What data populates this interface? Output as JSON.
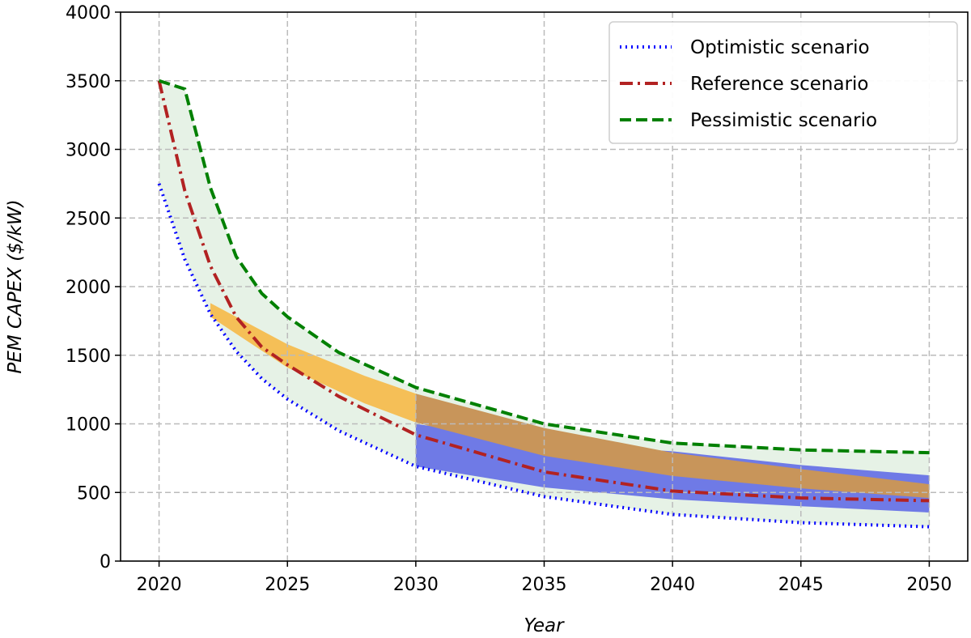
{
  "chart_data": {
    "type": "line",
    "title": "",
    "xlabel": "Year",
    "ylabel": "PEM CAPEX ($/kW)",
    "xlim": [
      2018.5,
      2051.5
    ],
    "ylim": [
      0,
      4000
    ],
    "xticks": [
      2020,
      2025,
      2030,
      2035,
      2040,
      2045,
      2050
    ],
    "yticks": [
      0,
      500,
      1000,
      1500,
      2000,
      2500,
      3000,
      3500,
      4000
    ],
    "grid": true,
    "legend_position": "top-right",
    "series": [
      {
        "name": "Optimistic scenario",
        "color": "#0000ff",
        "style": "dotted",
        "x": [
          2020,
          2021,
          2022,
          2023,
          2024,
          2025,
          2027,
          2030,
          2035,
          2040,
          2045,
          2050
        ],
        "y": [
          2750,
          2200,
          1800,
          1530,
          1330,
          1180,
          950,
          690,
          470,
          340,
          280,
          250
        ]
      },
      {
        "name": "Reference scenario",
        "color": "#b22222",
        "style": "dashdot",
        "x": [
          2020,
          2021,
          2022,
          2023,
          2024,
          2025,
          2027,
          2030,
          2035,
          2040,
          2045,
          2050
        ],
        "y": [
          3500,
          2700,
          2150,
          1780,
          1560,
          1430,
          1200,
          920,
          650,
          510,
          460,
          440
        ]
      },
      {
        "name": "Pessimistic scenario",
        "color": "#008000",
        "style": "dashed",
        "x": [
          2020,
          2021,
          2022,
          2023,
          2024,
          2025,
          2027,
          2030,
          2035,
          2040,
          2045,
          2050
        ],
        "y": [
          3500,
          3440,
          2720,
          2220,
          1950,
          1780,
          1520,
          1265,
          1000,
          860,
          810,
          790
        ]
      }
    ],
    "bands": [
      {
        "name": "scenario-range",
        "color": "#e6f2e6",
        "x": [
          2020,
          2021,
          2022,
          2023,
          2024,
          2025,
          2027,
          2030,
          2035,
          2040,
          2045,
          2050
        ],
        "upper": [
          3500,
          3440,
          2720,
          2220,
          1950,
          1780,
          1520,
          1265,
          1000,
          860,
          810,
          790
        ],
        "lower": [
          2750,
          2200,
          1800,
          1530,
          1330,
          1180,
          950,
          690,
          470,
          340,
          280,
          250
        ]
      },
      {
        "name": "blue-band",
        "color": "#6f7ae6",
        "x": [
          2030,
          2035,
          2040,
          2045,
          2050
        ],
        "upper": [
          1000,
          860,
          800,
          700,
          625
        ],
        "lower": [
          690,
          537,
          450,
          400,
          354
        ]
      },
      {
        "name": "orange-band",
        "color": "#f5bf57",
        "overlap_color": "#c8955a",
        "x": [
          2022,
          2025,
          2028,
          2030,
          2035,
          2040,
          2045,
          2050
        ],
        "upper": [
          1880,
          1580,
          1350,
          1220,
          970,
          790,
          670,
          560
        ],
        "lower": [
          1780,
          1410,
          1150,
          1010,
          767,
          620,
          530,
          460
        ]
      }
    ]
  }
}
